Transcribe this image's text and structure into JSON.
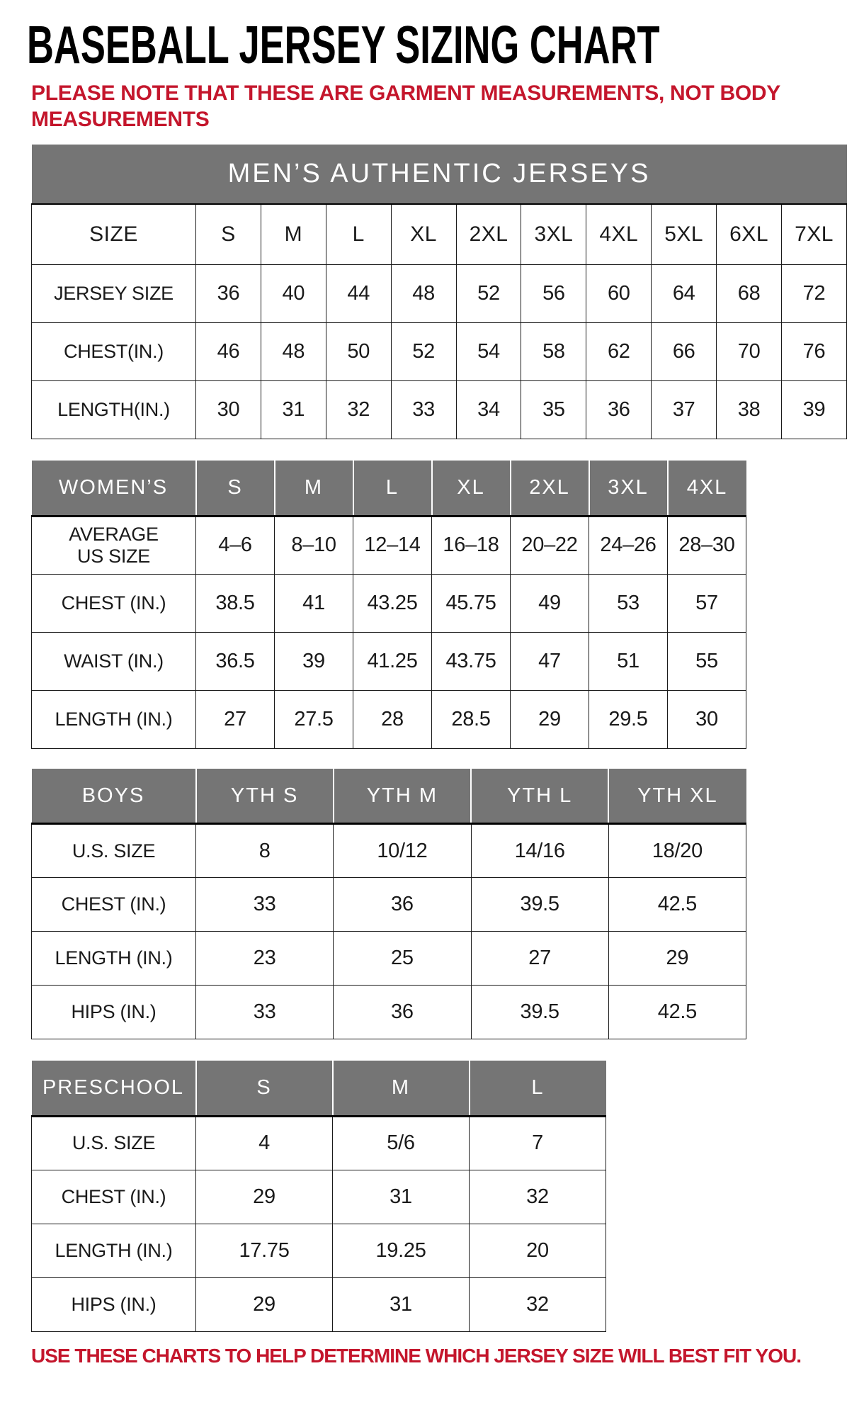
{
  "page": {
    "title": "BASEBALL JERSEY SIZING CHART",
    "note": "PLEASE NOTE THAT THESE ARE GARMENT MEASUREMENTS, NOT BODY MEASUREMENTS",
    "footer": "USE THESE CHARTS TO HELP DETERMINE WHICH JERSEY SIZE WILL BEST FIT YOU.",
    "colors": {
      "accent_red": "#C4162C",
      "header_gray": "#757575",
      "header_text": "#FFFFFF",
      "table_text": "#1A1A1A"
    }
  },
  "tables": [
    {
      "name": "mens-authentic-jerseys",
      "banner": "MEN’S AUTHENTIC JERSEYS",
      "header_style": "plain",
      "columns": [
        "SIZE",
        "S",
        "M",
        "L",
        "XL",
        "2XL",
        "3XL",
        "4XL",
        "5XL",
        "6XL",
        "7XL"
      ],
      "rows": [
        {
          "label": "JERSEY SIZE",
          "values": [
            "36",
            "40",
            "44",
            "48",
            "52",
            "56",
            "60",
            "64",
            "68",
            "72"
          ]
        },
        {
          "label": "CHEST(IN.)",
          "values": [
            "46",
            "48",
            "50",
            "52",
            "54",
            "58",
            "62",
            "66",
            "70",
            "76"
          ]
        },
        {
          "label": "LENGTH(IN.)",
          "values": [
            "30",
            "31",
            "32",
            "33",
            "34",
            "35",
            "36",
            "37",
            "38",
            "39"
          ]
        }
      ]
    },
    {
      "name": "womens",
      "banner": null,
      "header_style": "gray",
      "columns": [
        "WOMEN’S",
        "S",
        "M",
        "L",
        "XL",
        "2XL",
        "3XL",
        "4XL"
      ],
      "rows": [
        {
          "label": "AVERAGE\nUS SIZE",
          "values": [
            "4–6",
            "8–10",
            "12–14",
            "16–18",
            "20–22",
            "24–26",
            "28–30"
          ]
        },
        {
          "label": "CHEST (IN.)",
          "values": [
            "38.5",
            "41",
            "43.25",
            "45.75",
            "49",
            "53",
            "57"
          ]
        },
        {
          "label": "WAIST (IN.)",
          "values": [
            "36.5",
            "39",
            "41.25",
            "43.75",
            "47",
            "51",
            "55"
          ]
        },
        {
          "label": "LENGTH (IN.)",
          "values": [
            "27",
            "27.5",
            "28",
            "28.5",
            "29",
            "29.5",
            "30"
          ]
        }
      ]
    },
    {
      "name": "boys",
      "banner": null,
      "header_style": "gray",
      "columns": [
        "BOYS",
        "YTH S",
        "YTH M",
        "YTH L",
        "YTH XL"
      ],
      "rows": [
        {
          "label": "U.S. SIZE",
          "values": [
            "8",
            "10/12",
            "14/16",
            "18/20"
          ]
        },
        {
          "label": "CHEST (IN.)",
          "values": [
            "33",
            "36",
            "39.5",
            "42.5"
          ]
        },
        {
          "label": "LENGTH (IN.)",
          "values": [
            "23",
            "25",
            "27",
            "29"
          ]
        },
        {
          "label": "HIPS (IN.)",
          "values": [
            "33",
            "36",
            "39.5",
            "42.5"
          ]
        }
      ]
    },
    {
      "name": "preschool",
      "banner": null,
      "header_style": "gray",
      "columns": [
        "PRESCHOOL",
        "S",
        "M",
        "L"
      ],
      "rows": [
        {
          "label": "U.S. SIZE",
          "values": [
            "4",
            "5/6",
            "7"
          ]
        },
        {
          "label": "CHEST (IN.)",
          "values": [
            "29",
            "31",
            "32"
          ]
        },
        {
          "label": "LENGTH (IN.)",
          "values": [
            "17.75",
            "19.25",
            "20"
          ]
        },
        {
          "label": "HIPS (IN.)",
          "values": [
            "29",
            "31",
            "32"
          ]
        }
      ]
    }
  ]
}
